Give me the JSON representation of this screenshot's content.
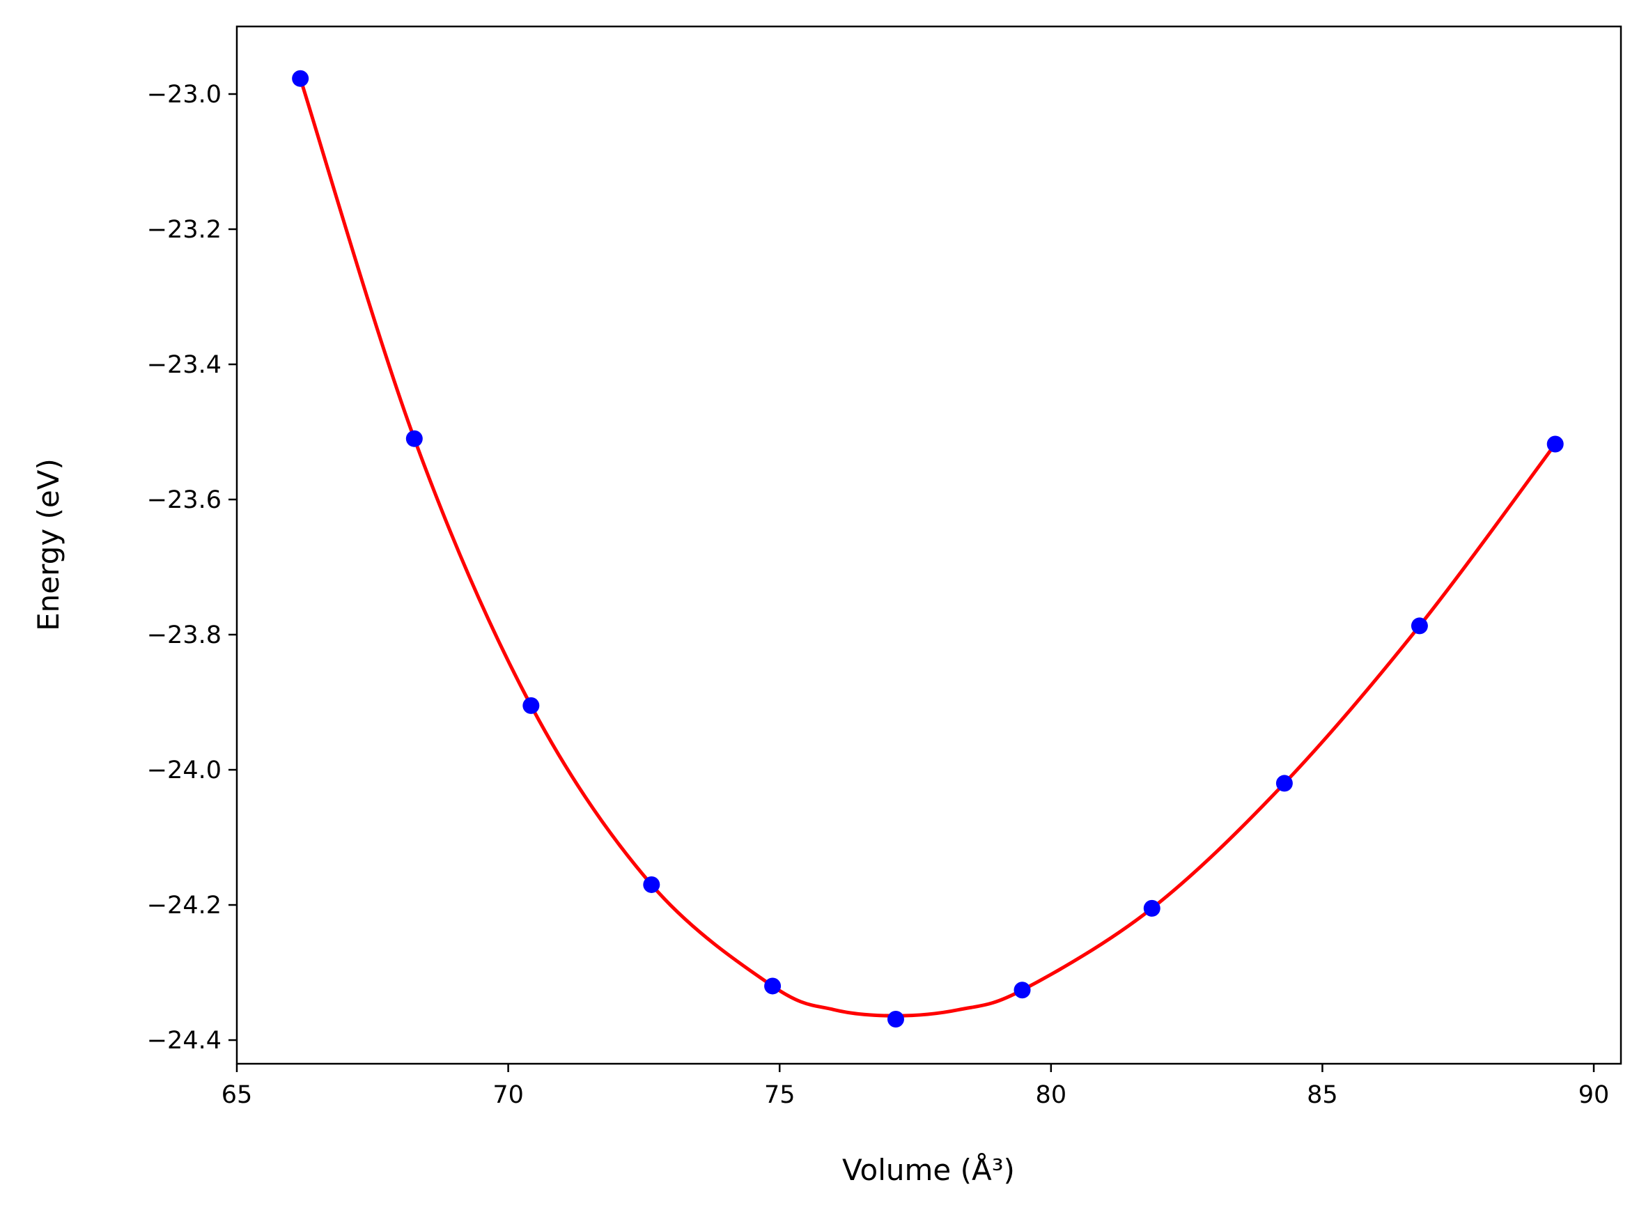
{
  "chart_data": {
    "type": "scatter",
    "title": "",
    "xlabel": "Volume (Å³)",
    "ylabel": "Energy (eV)",
    "xlim": [
      65,
      90.5
    ],
    "ylim": [
      -24.435,
      -22.9
    ],
    "x_ticks": [
      65,
      70,
      75,
      80,
      85,
      90
    ],
    "x_tick_labels": [
      "65",
      "70",
      "75",
      "80",
      "85",
      "90"
    ],
    "y_ticks": [
      -23.0,
      -23.2,
      -23.4,
      -23.6,
      -23.8,
      -24.0,
      -24.2,
      -24.4
    ],
    "y_tick_labels": [
      "−23.0",
      "−23.2",
      "−23.4",
      "−23.6",
      "−23.8",
      "−24.0",
      "−24.2",
      "−24.4"
    ],
    "grid": false,
    "series": [
      {
        "kind": "points",
        "color": "#0000ff",
        "x": [
          66.17,
          68.27,
          70.42,
          72.64,
          74.87,
          77.14,
          79.47,
          81.86,
          84.3,
          86.79,
          89.29
        ],
        "y": [
          -22.977,
          -23.51,
          -23.905,
          -24.17,
          -24.32,
          -24.369,
          -24.326,
          -24.205,
          -24.02,
          -23.787,
          -23.518
        ]
      },
      {
        "kind": "fit-curve",
        "color": "#ff0000",
        "x": [
          66.17,
          68.27,
          70.42,
          72.64,
          74.87,
          76.0,
          77.14,
          78.3,
          79.47,
          81.86,
          84.3,
          86.79,
          89.29
        ],
        "y": [
          -22.977,
          -23.51,
          -23.905,
          -24.17,
          -24.32,
          -24.355,
          -24.364,
          -24.355,
          -24.326,
          -24.205,
          -24.02,
          -23.787,
          -23.518
        ]
      }
    ]
  }
}
